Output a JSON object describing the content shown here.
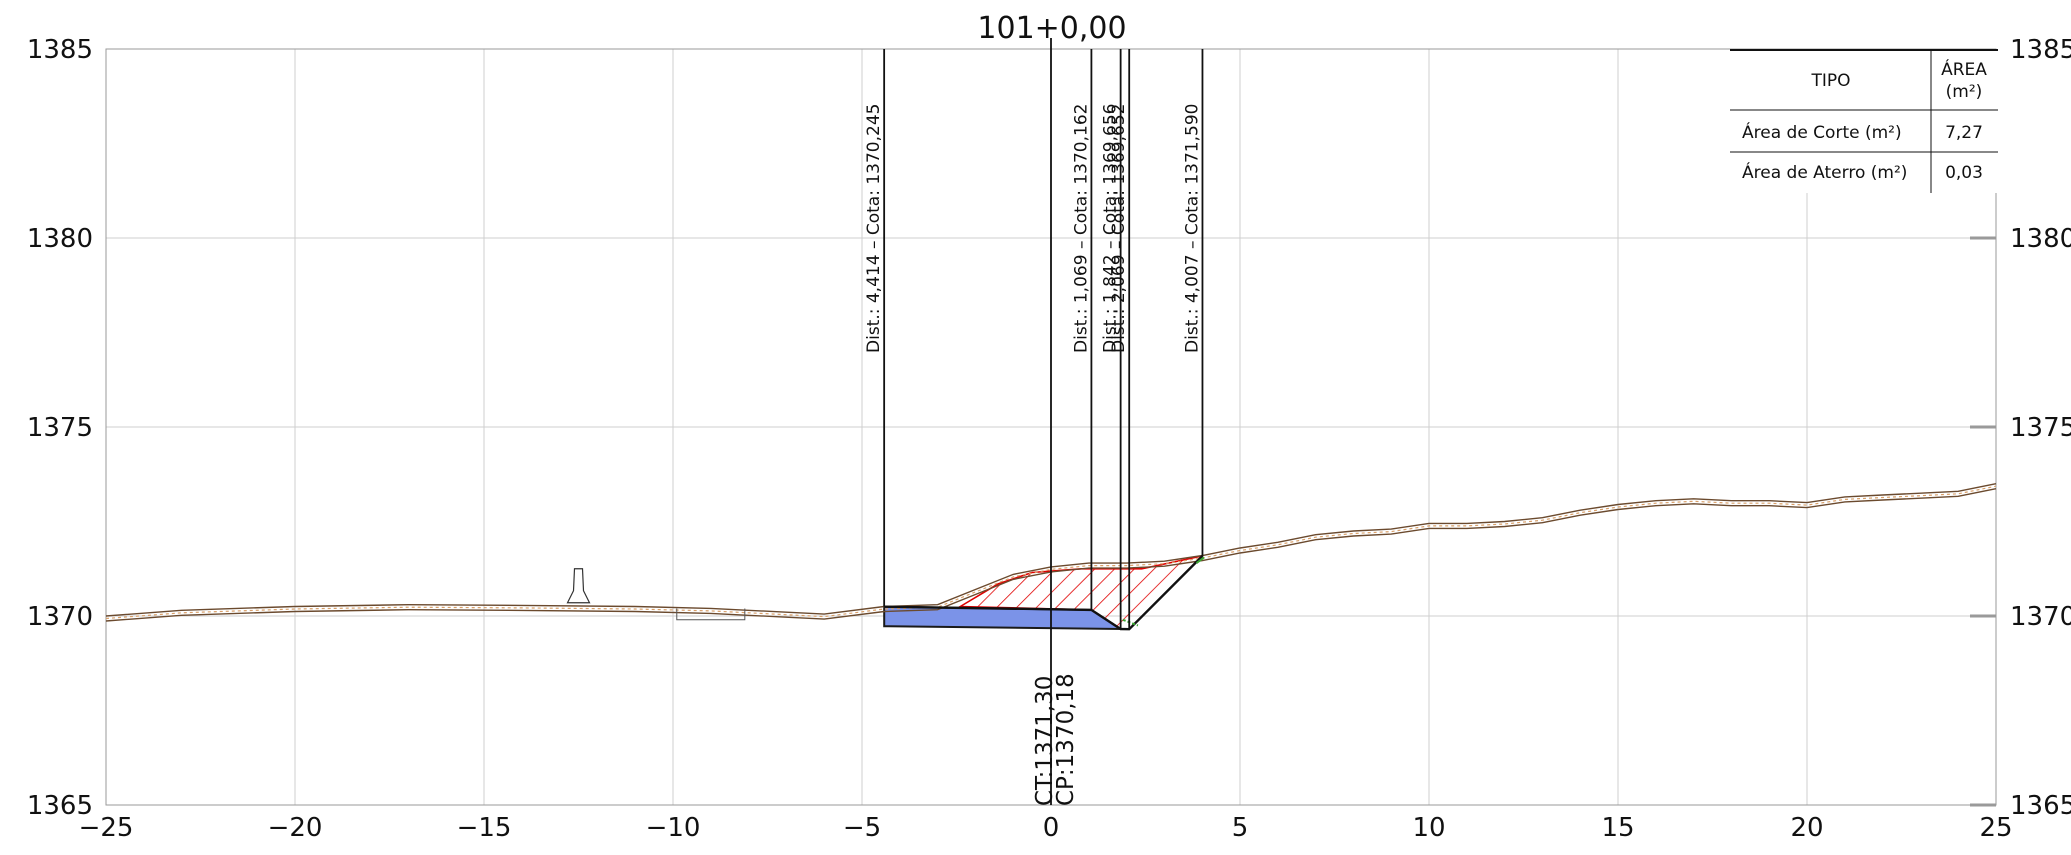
{
  "station_label": "101+0,00",
  "axes": {
    "x_ticks": [
      "−25",
      "−20",
      "−15",
      "−10",
      "−5",
      "0",
      "5",
      "10",
      "15",
      "20",
      "25"
    ],
    "y_ticks": [
      "1365",
      "1370",
      "1375",
      "1380",
      "1385"
    ],
    "x_range": [
      -25,
      25
    ],
    "y_range": [
      1365,
      1385
    ],
    "grid": true
  },
  "offset_annotations": [
    {
      "x": -4.414,
      "text": "Dist.: 4,414  –  Cota: 1370,245"
    },
    {
      "x": 1.069,
      "text": "Dist.: 1,069  –  Cota: 1370,162"
    },
    {
      "x": 1.842,
      "text": "Dist.: 1,842  –  Cota: 1369,656"
    },
    {
      "x": 2.069,
      "text": "Dist.: 2,069  –  Cota: 1369,652"
    },
    {
      "x": 4.007,
      "text": "Dist.: 4,007  –  Cota: 1371,590"
    }
  ],
  "centerline": {
    "ct": "CT:1371,30",
    "cp": "CP:1370,18"
  },
  "area_table": {
    "header_type": "TIPO",
    "header_area_1": "ÁREA",
    "header_area_2": "(m²)",
    "rows": [
      {
        "tipo": "Área de Corte (m²)",
        "area": "7,27"
      },
      {
        "tipo": "Área de Aterro (m²)",
        "area": "0,03"
      }
    ]
  },
  "colors": {
    "terrain": "#6b4a2e",
    "terrain_dash": "#d9a06a",
    "cut_hatch": "#e00000",
    "pavement": "#7b93e8",
    "fill_marker": "#3aa832"
  },
  "chart_data": {
    "type": "cross-section",
    "xlim": [
      -25,
      25
    ],
    "ylim": [
      1365,
      1385
    ],
    "terrain": {
      "x": [
        -25,
        -23,
        -20,
        -17,
        -14,
        -11,
        -9,
        -7,
        -6,
        -4.414,
        -3,
        -2,
        -1,
        0,
        1,
        2,
        3,
        4.007,
        5,
        6,
        7,
        8,
        9,
        10,
        11,
        12,
        13,
        14,
        15,
        16,
        17,
        18,
        19,
        20,
        21,
        22,
        23,
        24,
        25
      ],
      "y": [
        1370.0,
        1370.15,
        1370.25,
        1370.3,
        1370.28,
        1370.25,
        1370.2,
        1370.1,
        1370.05,
        1370.25,
        1370.3,
        1370.7,
        1371.1,
        1371.3,
        1371.4,
        1371.4,
        1371.45,
        1371.6,
        1371.8,
        1371.95,
        1372.15,
        1372.25,
        1372.3,
        1372.45,
        1372.45,
        1372.5,
        1372.6,
        1372.8,
        1372.95,
        1373.05,
        1373.1,
        1373.05,
        1373.05,
        1373.0,
        1373.15,
        1373.2,
        1373.25,
        1373.3,
        1373.5
      ]
    },
    "design_section": {
      "x": [
        -4.414,
        1.069,
        1.842,
        2.069,
        4.007
      ],
      "y": [
        1370.245,
        1370.162,
        1369.656,
        1369.652,
        1371.59
      ]
    },
    "areas": {
      "corte": 7.27,
      "aterro": 0.03
    }
  }
}
